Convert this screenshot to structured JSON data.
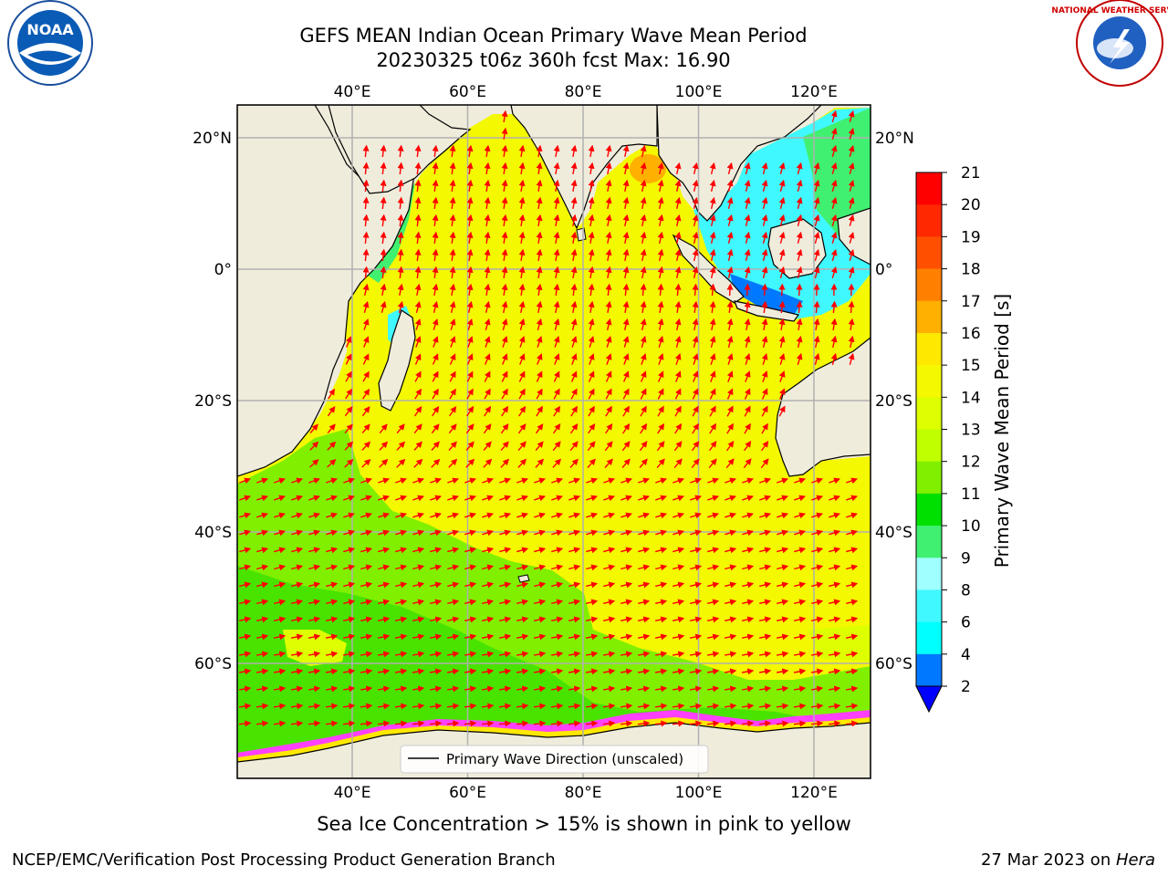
{
  "title": {
    "line1": "GEFS MEAN Indian Ocean Primary Wave Mean Period",
    "line2": "20230325 t06z 360h fcst   Max: 16.90"
  },
  "logos": {
    "left_text": "NOAA",
    "right_text": "NATIONAL WEATHER SERVICE"
  },
  "map": {
    "lon_range": [
      20,
      130
    ],
    "lat_range": [
      -75,
      28
    ],
    "lon_ticks": [
      "40°E",
      "60°E",
      "80°E",
      "100°E",
      "120°E"
    ],
    "lon_tick_values": [
      40,
      60,
      80,
      100,
      120
    ],
    "lat_ticks_left": [
      "20°N",
      "0°",
      "20°S",
      "40°S",
      "60°S"
    ],
    "lat_ticks_right": [
      "20°N",
      "0°",
      "20°S",
      "40°S",
      "60°S"
    ],
    "lat_tick_values": [
      20,
      0,
      -20,
      -40,
      -60
    ],
    "gridlines": true,
    "land_color": "#efecdc",
    "arrow_color": "#ff0000",
    "legend_label": "Primary Wave Direction (unscaled)",
    "legend_placement": "bottom-center"
  },
  "colorbar": {
    "label": "Primary Wave Mean Period [s]",
    "ticks": [
      "21",
      "20",
      "19",
      "18",
      "17",
      "16",
      "15",
      "14",
      "13",
      "12",
      "11",
      "10",
      "9",
      "8",
      "6",
      "4",
      "2"
    ],
    "colors": [
      "#ff0000",
      "#ff2800",
      "#ff5000",
      "#ff8000",
      "#ffb000",
      "#ffe800",
      "#f4f800",
      "#ddff00",
      "#c0ff00",
      "#80f000",
      "#00e000",
      "#40f070",
      "#a0ffff",
      "#40f8ff",
      "#00ffff",
      "#0078ff",
      "#0000ff"
    ]
  },
  "caption": "Sea Ice Concentration > 15% is shown in pink to yellow",
  "footer": {
    "left": "NCEP/EMC/Verification Post Processing Product Generation Branch",
    "right_prefix": "27 Mar 2023 on ",
    "right_italic": "Hera"
  }
}
